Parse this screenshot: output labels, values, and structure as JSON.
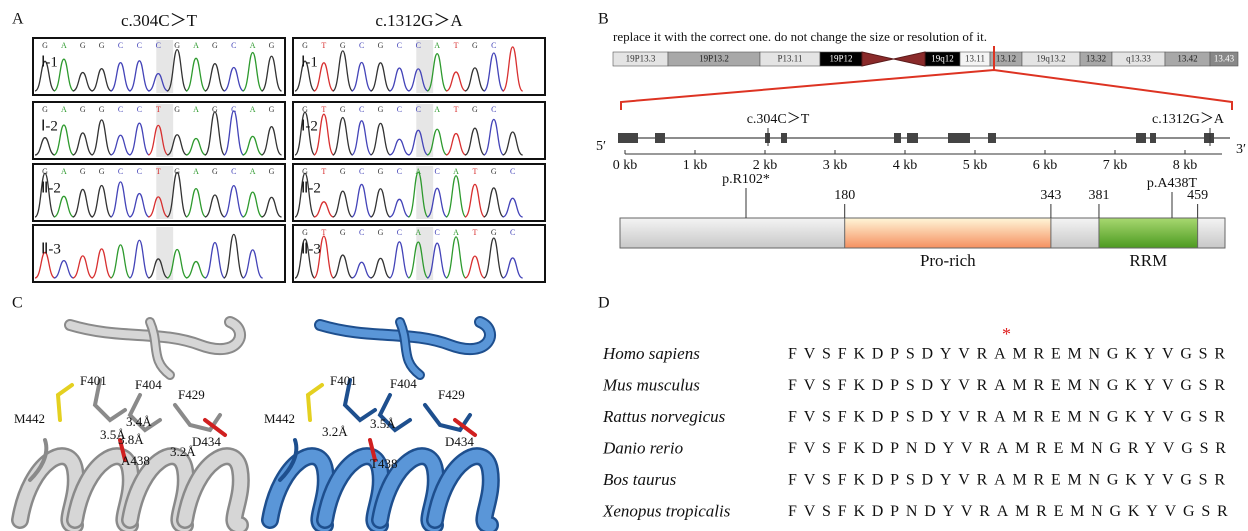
{
  "panel_a": {
    "label": "A",
    "columns": [
      {
        "title": "c.304C＞T",
        "rows": [
          {
            "label": "Ⅰ-1",
            "bases": [
              "G",
              "A",
              "G",
              "G",
              "C",
              "C",
              "C",
              "G",
              "A",
              "G",
              "C",
              "A",
              "G"
            ]
          },
          {
            "label": "Ⅰ-2",
            "bases": [
              "G",
              "A",
              "G",
              "G",
              "C",
              "C",
              "T",
              "G",
              "A",
              "G",
              "C",
              "A",
              "G"
            ]
          },
          {
            "label": "Ⅱ-2",
            "bases": [
              "G",
              "A",
              "G",
              "G",
              "C",
              "C",
              "T",
              "G",
              "A",
              "G",
              "C",
              "A",
              "G"
            ]
          },
          {
            "label": "Ⅱ-3",
            "bases": []
          }
        ]
      },
      {
        "title": "c.1312G＞A",
        "rows": [
          {
            "label": "Ⅰ-1",
            "bases": [
              "G",
              "T",
              "G",
              "C",
              "G",
              "C",
              "C",
              "A",
              "T",
              "G",
              "C"
            ]
          },
          {
            "label": "Ⅰ-2",
            "bases": [
              "G",
              "T",
              "G",
              "C",
              "G",
              "C",
              "C",
              "A",
              "T",
              "G",
              "C"
            ]
          },
          {
            "label": "Ⅱ-2",
            "bases": [
              "G",
              "T",
              "G",
              "C",
              "G",
              "C",
              "A",
              "C",
              "A",
              "T",
              "G",
              "C"
            ]
          },
          {
            "label": "Ⅱ-3",
            "bases": [
              "G",
              "T",
              "G",
              "C",
              "G",
              "C",
              "A",
              "C",
              "A",
              "T",
              "G",
              "C"
            ]
          }
        ]
      }
    ]
  },
  "panel_b": {
    "label": "B",
    "note": "replace it with the correct one. do not change the size or resolution of it.",
    "chromosome": {
      "bands": [
        "19P13.3",
        "19P13.2",
        "P13.11",
        "19P12",
        "19q12",
        "13.11",
        "13.12",
        "19q13.2",
        "13.32",
        "q13.33",
        "13.42",
        "13.43"
      ]
    },
    "gene": {
      "five_prime": "5′",
      "three_prime": "3′",
      "variants": [
        "c.304C＞T",
        "c.1312G＞A"
      ],
      "ticks": [
        "0 kb",
        "1 kb",
        "2 kb",
        "3 kb",
        "4 kb",
        "5 kb",
        "6 kb",
        "7 kb",
        "8 kb"
      ]
    },
    "protein": {
      "mutations": [
        "p.R102*",
        "p.A438T"
      ],
      "boundaries": [
        180,
        343,
        381,
        459
      ],
      "domains": [
        "Pro-rich",
        "RRM"
      ]
    }
  },
  "panel_c": {
    "label": "C",
    "wild_type": {
      "labels": [
        "F401",
        "F404",
        "F429",
        "M442",
        "3.4Å",
        "3.5Å",
        "3.8Å",
        "3.2Å",
        "A438",
        "D434"
      ]
    },
    "mutant": {
      "labels": [
        "F401",
        "F404",
        "F429",
        "M442",
        "3.2Å",
        "3.5Å",
        "T438",
        "D434"
      ]
    }
  },
  "panel_d": {
    "label": "D",
    "marker": "*",
    "rows": [
      {
        "species": "Homo sapiens",
        "sequence": "FVSFKDPSDYVRAMREMNGKYVGSR"
      },
      {
        "species": "Mus musculus",
        "sequence": "FVSFKDPSDYVRAMREMNGKYVGSR"
      },
      {
        "species": "Rattus norvegicus",
        "sequence": "FVSFKDPSDYVRAMREMNGKYVGSR"
      },
      {
        "species": "Danio rerio",
        "sequence": "FVSFKDPNDYVRAMREMNGRYVGSR"
      },
      {
        "species": "Bos taurus",
        "sequence": "FVSFKDPSDYVRAMREMNGKYVGSR"
      },
      {
        "species": "Xenopus tropicalis",
        "sequence": "FVSFKDPNDYVRAMREMNGKYVGSR"
      }
    ]
  }
}
